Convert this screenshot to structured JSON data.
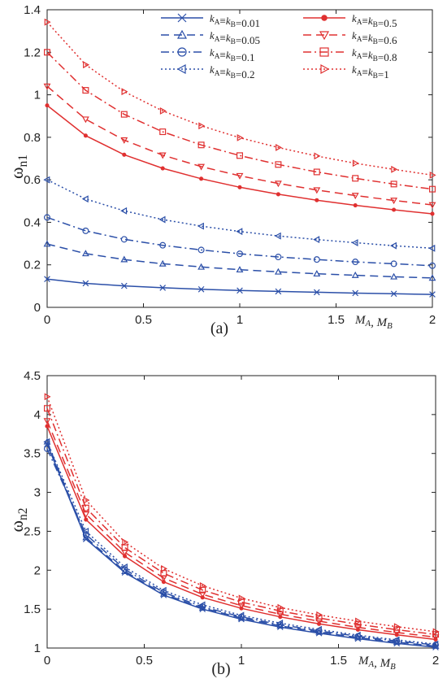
{
  "chart_data": [
    {
      "type": "line",
      "subtitle": "(a)",
      "xlabel": "M_A, M_B",
      "ylabel": "ω_n1",
      "xlim": [
        0,
        2
      ],
      "ylim": [
        0,
        1.4
      ],
      "xticks": [
        0,
        0.5,
        1,
        1.5,
        2
      ],
      "yticks": [
        0,
        0.2,
        0.4,
        0.6,
        0.8,
        1,
        1.2,
        1.4
      ],
      "x": [
        0,
        0.2,
        0.4,
        0.6,
        0.8,
        1.0,
        1.2,
        1.4,
        1.6,
        1.8,
        2.0
      ],
      "legend_position": "top-right",
      "series": [
        {
          "name": "k_A≡k_B=0.01",
          "values": [
            0.133,
            0.113,
            0.101,
            0.092,
            0.085,
            0.079,
            0.075,
            0.071,
            0.067,
            0.064,
            0.061
          ]
        },
        {
          "name": "k_A≡k_B=0.05",
          "values": [
            0.298,
            0.253,
            0.225,
            0.205,
            0.19,
            0.177,
            0.167,
            0.158,
            0.151,
            0.144,
            0.138
          ]
        },
        {
          "name": "k_A≡k_B=0.1",
          "values": [
            0.423,
            0.36,
            0.32,
            0.292,
            0.27,
            0.252,
            0.237,
            0.225,
            0.214,
            0.205,
            0.196
          ]
        },
        {
          "name": "k_A≡k_B=0.2",
          "values": [
            0.6,
            0.51,
            0.454,
            0.413,
            0.382,
            0.357,
            0.336,
            0.319,
            0.304,
            0.29,
            0.278
          ]
        },
        {
          "name": "k_A≡k_B=0.5",
          "values": [
            0.95,
            0.808,
            0.718,
            0.654,
            0.605,
            0.565,
            0.532,
            0.504,
            0.48,
            0.459,
            0.44
          ]
        },
        {
          "name": "k_A≡k_B=0.6",
          "values": [
            1.04,
            0.885,
            0.787,
            0.716,
            0.662,
            0.619,
            0.583,
            0.552,
            0.526,
            0.503,
            0.482
          ]
        },
        {
          "name": "k_A≡k_B=0.8",
          "values": [
            1.2,
            1.021,
            0.908,
            0.826,
            0.764,
            0.714,
            0.672,
            0.637,
            0.607,
            0.58,
            0.556
          ]
        },
        {
          "name": "k_A≡k_B=1",
          "values": [
            1.342,
            1.141,
            1.015,
            0.924,
            0.854,
            0.798,
            0.752,
            0.712,
            0.678,
            0.649,
            0.622
          ]
        }
      ]
    },
    {
      "type": "line",
      "subtitle": "(b)",
      "xlabel": "M_A, M_B",
      "ylabel": "ω_n2",
      "xlim": [
        0,
        2
      ],
      "ylim": [
        1,
        4.5
      ],
      "xticks": [
        0,
        0.5,
        1,
        1.5,
        2
      ],
      "yticks": [
        1,
        1.5,
        2,
        2.5,
        3,
        3.5,
        4,
        4.5
      ],
      "x": [
        0,
        0.2,
        0.4,
        0.6,
        0.8,
        1.0,
        1.2,
        1.4,
        1.6,
        1.8,
        2.0
      ],
      "series": [
        {
          "name": "k_A≡k_B=0.01",
          "values": [
            3.62,
            2.4,
            1.97,
            1.68,
            1.5,
            1.37,
            1.27,
            1.19,
            1.12,
            1.06,
            1.01
          ]
        },
        {
          "name": "k_A≡k_B=0.05",
          "values": [
            3.65,
            2.42,
            1.985,
            1.695,
            1.515,
            1.385,
            1.285,
            1.205,
            1.135,
            1.075,
            1.025
          ]
        },
        {
          "name": "k_A≡k_B=0.1",
          "values": [
            3.56,
            2.46,
            2.01,
            1.715,
            1.53,
            1.4,
            1.3,
            1.22,
            1.15,
            1.09,
            1.04
          ]
        },
        {
          "name": "k_A≡k_B=0.2",
          "values": [
            3.65,
            2.5,
            2.04,
            1.74,
            1.555,
            1.42,
            1.32,
            1.238,
            1.165,
            1.105,
            1.05
          ]
        },
        {
          "name": "k_A≡k_B=0.5",
          "values": [
            3.85,
            2.65,
            2.18,
            1.85,
            1.65,
            1.51,
            1.4,
            1.31,
            1.235,
            1.17,
            1.11
          ]
        },
        {
          "name": "k_A≡k_B=0.6",
          "values": [
            3.92,
            2.72,
            2.23,
            1.9,
            1.69,
            1.545,
            1.435,
            1.345,
            1.265,
            1.2,
            1.14
          ]
        },
        {
          "name": "k_A≡k_B=0.8",
          "values": [
            4.08,
            2.8,
            2.29,
            1.96,
            1.745,
            1.59,
            1.475,
            1.385,
            1.305,
            1.235,
            1.175
          ]
        },
        {
          "name": "k_A≡k_B=1",
          "values": [
            4.23,
            2.9,
            2.36,
            2.02,
            1.8,
            1.64,
            1.52,
            1.425,
            1.345,
            1.275,
            1.21
          ]
        }
      ]
    }
  ],
  "series_styles": [
    {
      "color": "#2b4fa8",
      "dash": "",
      "marker": "x"
    },
    {
      "color": "#2b4fa8",
      "dash": "10,6",
      "marker": "triangle-up"
    },
    {
      "color": "#2b4fa8",
      "dash": "10,4,2,4",
      "marker": "circle"
    },
    {
      "color": "#2b4fa8",
      "dash": "2,3",
      "marker": "triangle-left"
    },
    {
      "color": "#e03030",
      "dash": "",
      "marker": "dot"
    },
    {
      "color": "#e03030",
      "dash": "10,6",
      "marker": "triangle-down"
    },
    {
      "color": "#e03030",
      "dash": "10,4,2,4",
      "marker": "square"
    },
    {
      "color": "#e03030",
      "dash": "2,3",
      "marker": "triangle-right"
    }
  ]
}
